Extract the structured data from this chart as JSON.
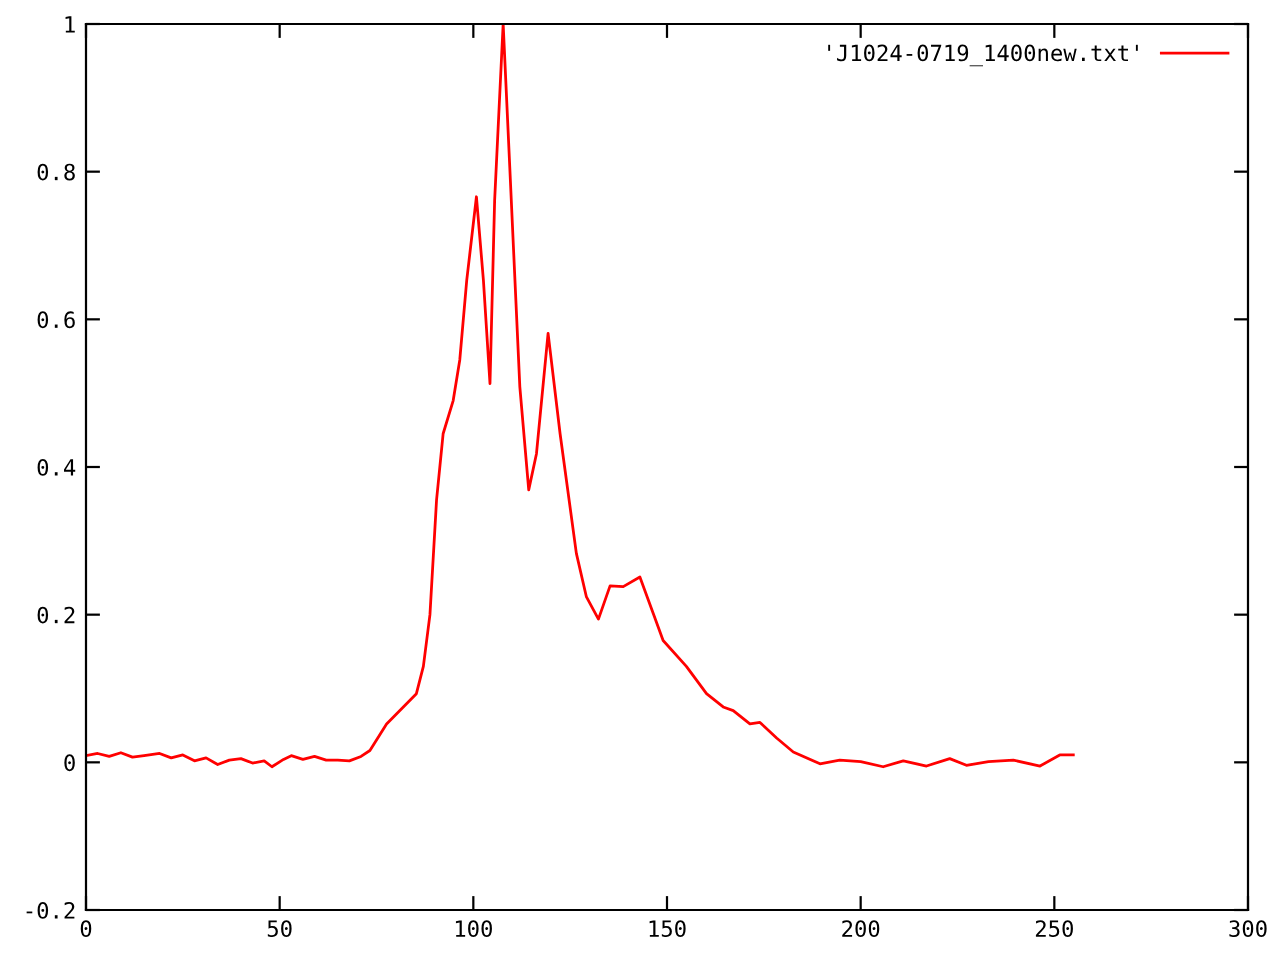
{
  "chart_data": {
    "type": "line",
    "legend": "top right",
    "grid": false,
    "marker": "none",
    "line_style": "solid",
    "xlim": [
      0,
      300
    ],
    "ylim": [
      -0.2,
      1
    ],
    "xticks": [
      0,
      50,
      100,
      150,
      200,
      250,
      300
    ],
    "yticks": [
      {
        "value": -0.2,
        "label": "-0.2"
      },
      0,
      {
        "value": 0.2,
        "label": "0.2"
      },
      {
        "value": 0.4,
        "label": "0.4"
      },
      {
        "value": 0.6,
        "label": "0.6"
      },
      {
        "value": 0.8,
        "label": "0.8"
      },
      1
    ],
    "series": [
      {
        "name": "'J1024-0719_1400new.txt'",
        "color": "#ff0000",
        "x": [
          0,
          3,
          6,
          9,
          12,
          15,
          19,
          22,
          25,
          28,
          31,
          34,
          37,
          40,
          43,
          46,
          48,
          51,
          53,
          56,
          59,
          62,
          65,
          68,
          71,
          73.3,
          77.6,
          85.3,
          87.1,
          88.8,
          90.5,
          92.2,
          94.8,
          96.5,
          98.3,
          100.8,
          102.6,
          104.3,
          105.5,
          107.7,
          109.4,
          112,
          114.3,
          116.3,
          119.3,
          122.4,
          126.6,
          129.2,
          132.3,
          135.3,
          138.7,
          143,
          146.5,
          149,
          155,
          160.2,
          164.5,
          167.1,
          171.4,
          174,
          178.3,
          182.6,
          189.5,
          194.6,
          200,
          205.8,
          211,
          217,
          223,
          227.3,
          233,
          239.4,
          246.3,
          251.4,
          254.9
        ],
        "values": [
          0.009,
          0.012,
          0.008,
          0.013,
          0.007,
          0.009,
          0.012,
          0.006,
          0.01,
          0.002,
          0.006,
          -0.003,
          0.003,
          0.005,
          -0.001,
          0.002,
          -0.006,
          0.004,
          0.009,
          0.004,
          0.008,
          0.003,
          0.003,
          0.002,
          0.008,
          0.016,
          0.052,
          0.093,
          0.13,
          0.2,
          0.355,
          0.445,
          0.49,
          0.545,
          0.653,
          0.766,
          0.653,
          0.513,
          0.761,
          1.0,
          0.807,
          0.509,
          0.369,
          0.418,
          0.581,
          0.445,
          0.283,
          0.224,
          0.194,
          0.239,
          0.238,
          0.251,
          0.201,
          0.165,
          0.13,
          0.093,
          0.075,
          0.07,
          0.052,
          0.054,
          0.033,
          0.014,
          -0.002,
          0.003,
          0.001,
          -0.006,
          0.002,
          -0.005,
          0.005,
          -0.004,
          0.001,
          0.003,
          -0.005,
          0.01,
          0.01
        ]
      }
    ]
  }
}
